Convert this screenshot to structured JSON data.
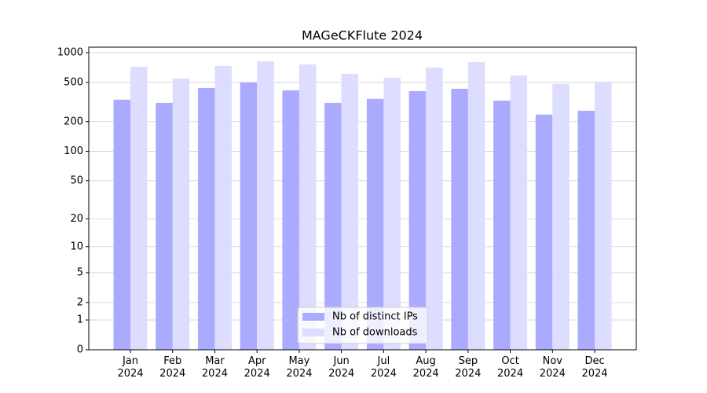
{
  "chart_data": {
    "type": "bar",
    "title": "MAGeCKFlute 2024",
    "categories": [
      "Jan\n2024",
      "Feb\n2024",
      "Mar\n2024",
      "Apr\n2024",
      "May\n2024",
      "Jun\n2024",
      "Jul\n2024",
      "Aug\n2024",
      "Sep\n2024",
      "Oct\n2024",
      "Nov\n2024",
      "Dec\n2024"
    ],
    "series": [
      {
        "name": "Nb of distinct IPs",
        "color": "#aaaaff",
        "values": [
          334,
          310,
          439,
          499,
          415,
          310,
          340,
          408,
          431,
          327,
          236,
          258
        ]
      },
      {
        "name": "Nb of downloads",
        "color": "#ddddff",
        "values": [
          719,
          547,
          732,
          817,
          760,
          610,
          556,
          706,
          802,
          588,
          481,
          499
        ]
      }
    ],
    "yscale": "symlog",
    "ylim": [
      0,
      1135
    ],
    "yticks": [
      0,
      1,
      2,
      5,
      10,
      20,
      50,
      100,
      200,
      500,
      1000
    ],
    "grid": true,
    "legend": "lower center"
  }
}
